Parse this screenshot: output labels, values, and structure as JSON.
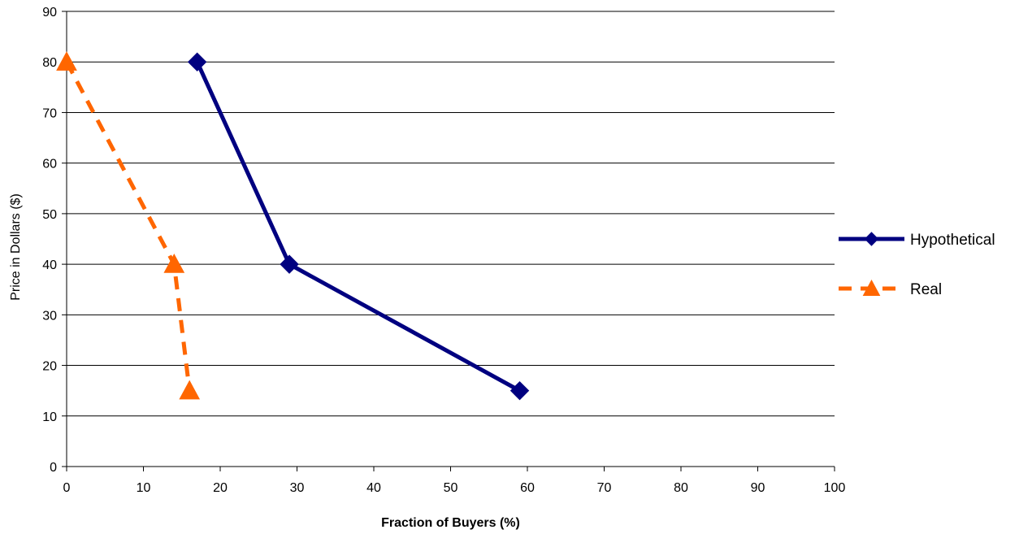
{
  "chart_data": {
    "type": "line",
    "title": "",
    "xlabel": "Fraction of Buyers (%)",
    "ylabel": "Price in Dollars ($)",
    "xlim": [
      0,
      100
    ],
    "ylim": [
      0,
      90
    ],
    "x_ticks": [
      0,
      10,
      20,
      30,
      40,
      50,
      60,
      70,
      80,
      90,
      100
    ],
    "y_ticks": [
      0,
      10,
      20,
      30,
      40,
      50,
      60,
      70,
      80,
      90
    ],
    "grid": "horizontal",
    "legend_position": "right",
    "series": [
      {
        "name": "Hypothetical",
        "color": "#000080",
        "line_style": "solid",
        "marker": "diamond",
        "points": [
          {
            "x": 17,
            "y": 80
          },
          {
            "x": 29,
            "y": 40
          },
          {
            "x": 59,
            "y": 15
          }
        ]
      },
      {
        "name": "Real",
        "color": "#FF6600",
        "line_style": "dashed",
        "marker": "triangle",
        "points": [
          {
            "x": 0,
            "y": 80
          },
          {
            "x": 14,
            "y": 40
          },
          {
            "x": 16,
            "y": 15
          }
        ]
      }
    ]
  }
}
